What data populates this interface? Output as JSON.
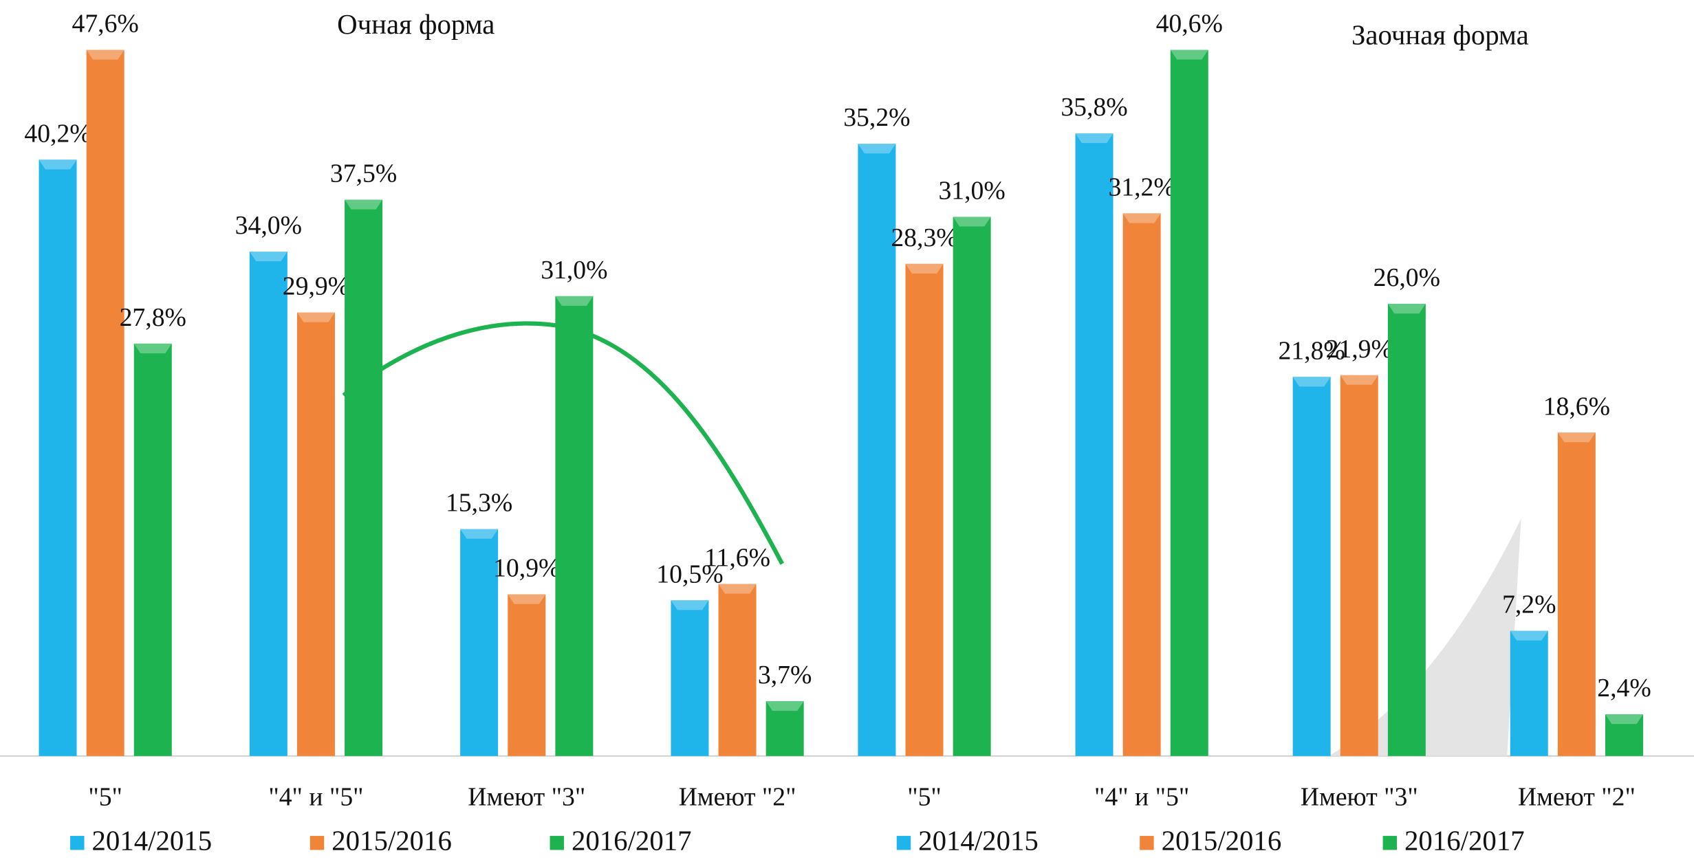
{
  "chart_data": [
    {
      "type": "bar",
      "title": "Очная форма",
      "categories": [
        "\"5\"",
        "\"4\" и \"5\"",
        "Имеют \"3\"",
        "Имеют \"2\""
      ],
      "series": [
        {
          "name": "2014/2015",
          "color": "#1fb4ea",
          "values": [
            40.2,
            34.0,
            15.3,
            10.5
          ],
          "value_labels": [
            "40,2%",
            "34,0%",
            "15,3%",
            "10,5%"
          ]
        },
        {
          "name": "2015/2016",
          "color": "#f0853a",
          "values": [
            47.6,
            29.9,
            10.9,
            11.6
          ],
          "value_labels": [
            "47,6%",
            "29,9%",
            "10,9%",
            "11,6%"
          ]
        },
        {
          "name": "2016/2017",
          "color": "#1db350",
          "values": [
            27.8,
            37.5,
            31.0,
            3.7
          ],
          "value_labels": [
            "27,8%",
            "37,5%",
            "31,0%",
            "3,7%"
          ]
        }
      ]
    },
    {
      "type": "bar",
      "title": "Заочная форма",
      "categories": [
        "\"5\"",
        "\"4\" и \"5\"",
        "Имеют \"3\"",
        "Имеют \"2\""
      ],
      "series": [
        {
          "name": "2014/2015",
          "color": "#1fb4ea",
          "values": [
            35.2,
            35.8,
            21.8,
            7.2
          ],
          "value_labels": [
            "35,2%",
            "35,8%",
            "21,8%",
            "7,2%"
          ]
        },
        {
          "name": "2015/2016",
          "color": "#f0853a",
          "values": [
            28.3,
            31.2,
            21.9,
            18.6
          ],
          "value_labels": [
            "28,3%",
            "31,2%",
            "21,9%",
            "18,6%"
          ]
        },
        {
          "name": "2016/2017",
          "color": "#1db350",
          "values": [
            31.0,
            40.6,
            26.0,
            2.4
          ],
          "value_labels": [
            "31,0%",
            "40,6%",
            "26,0%",
            "2,4%"
          ]
        }
      ]
    }
  ]
}
